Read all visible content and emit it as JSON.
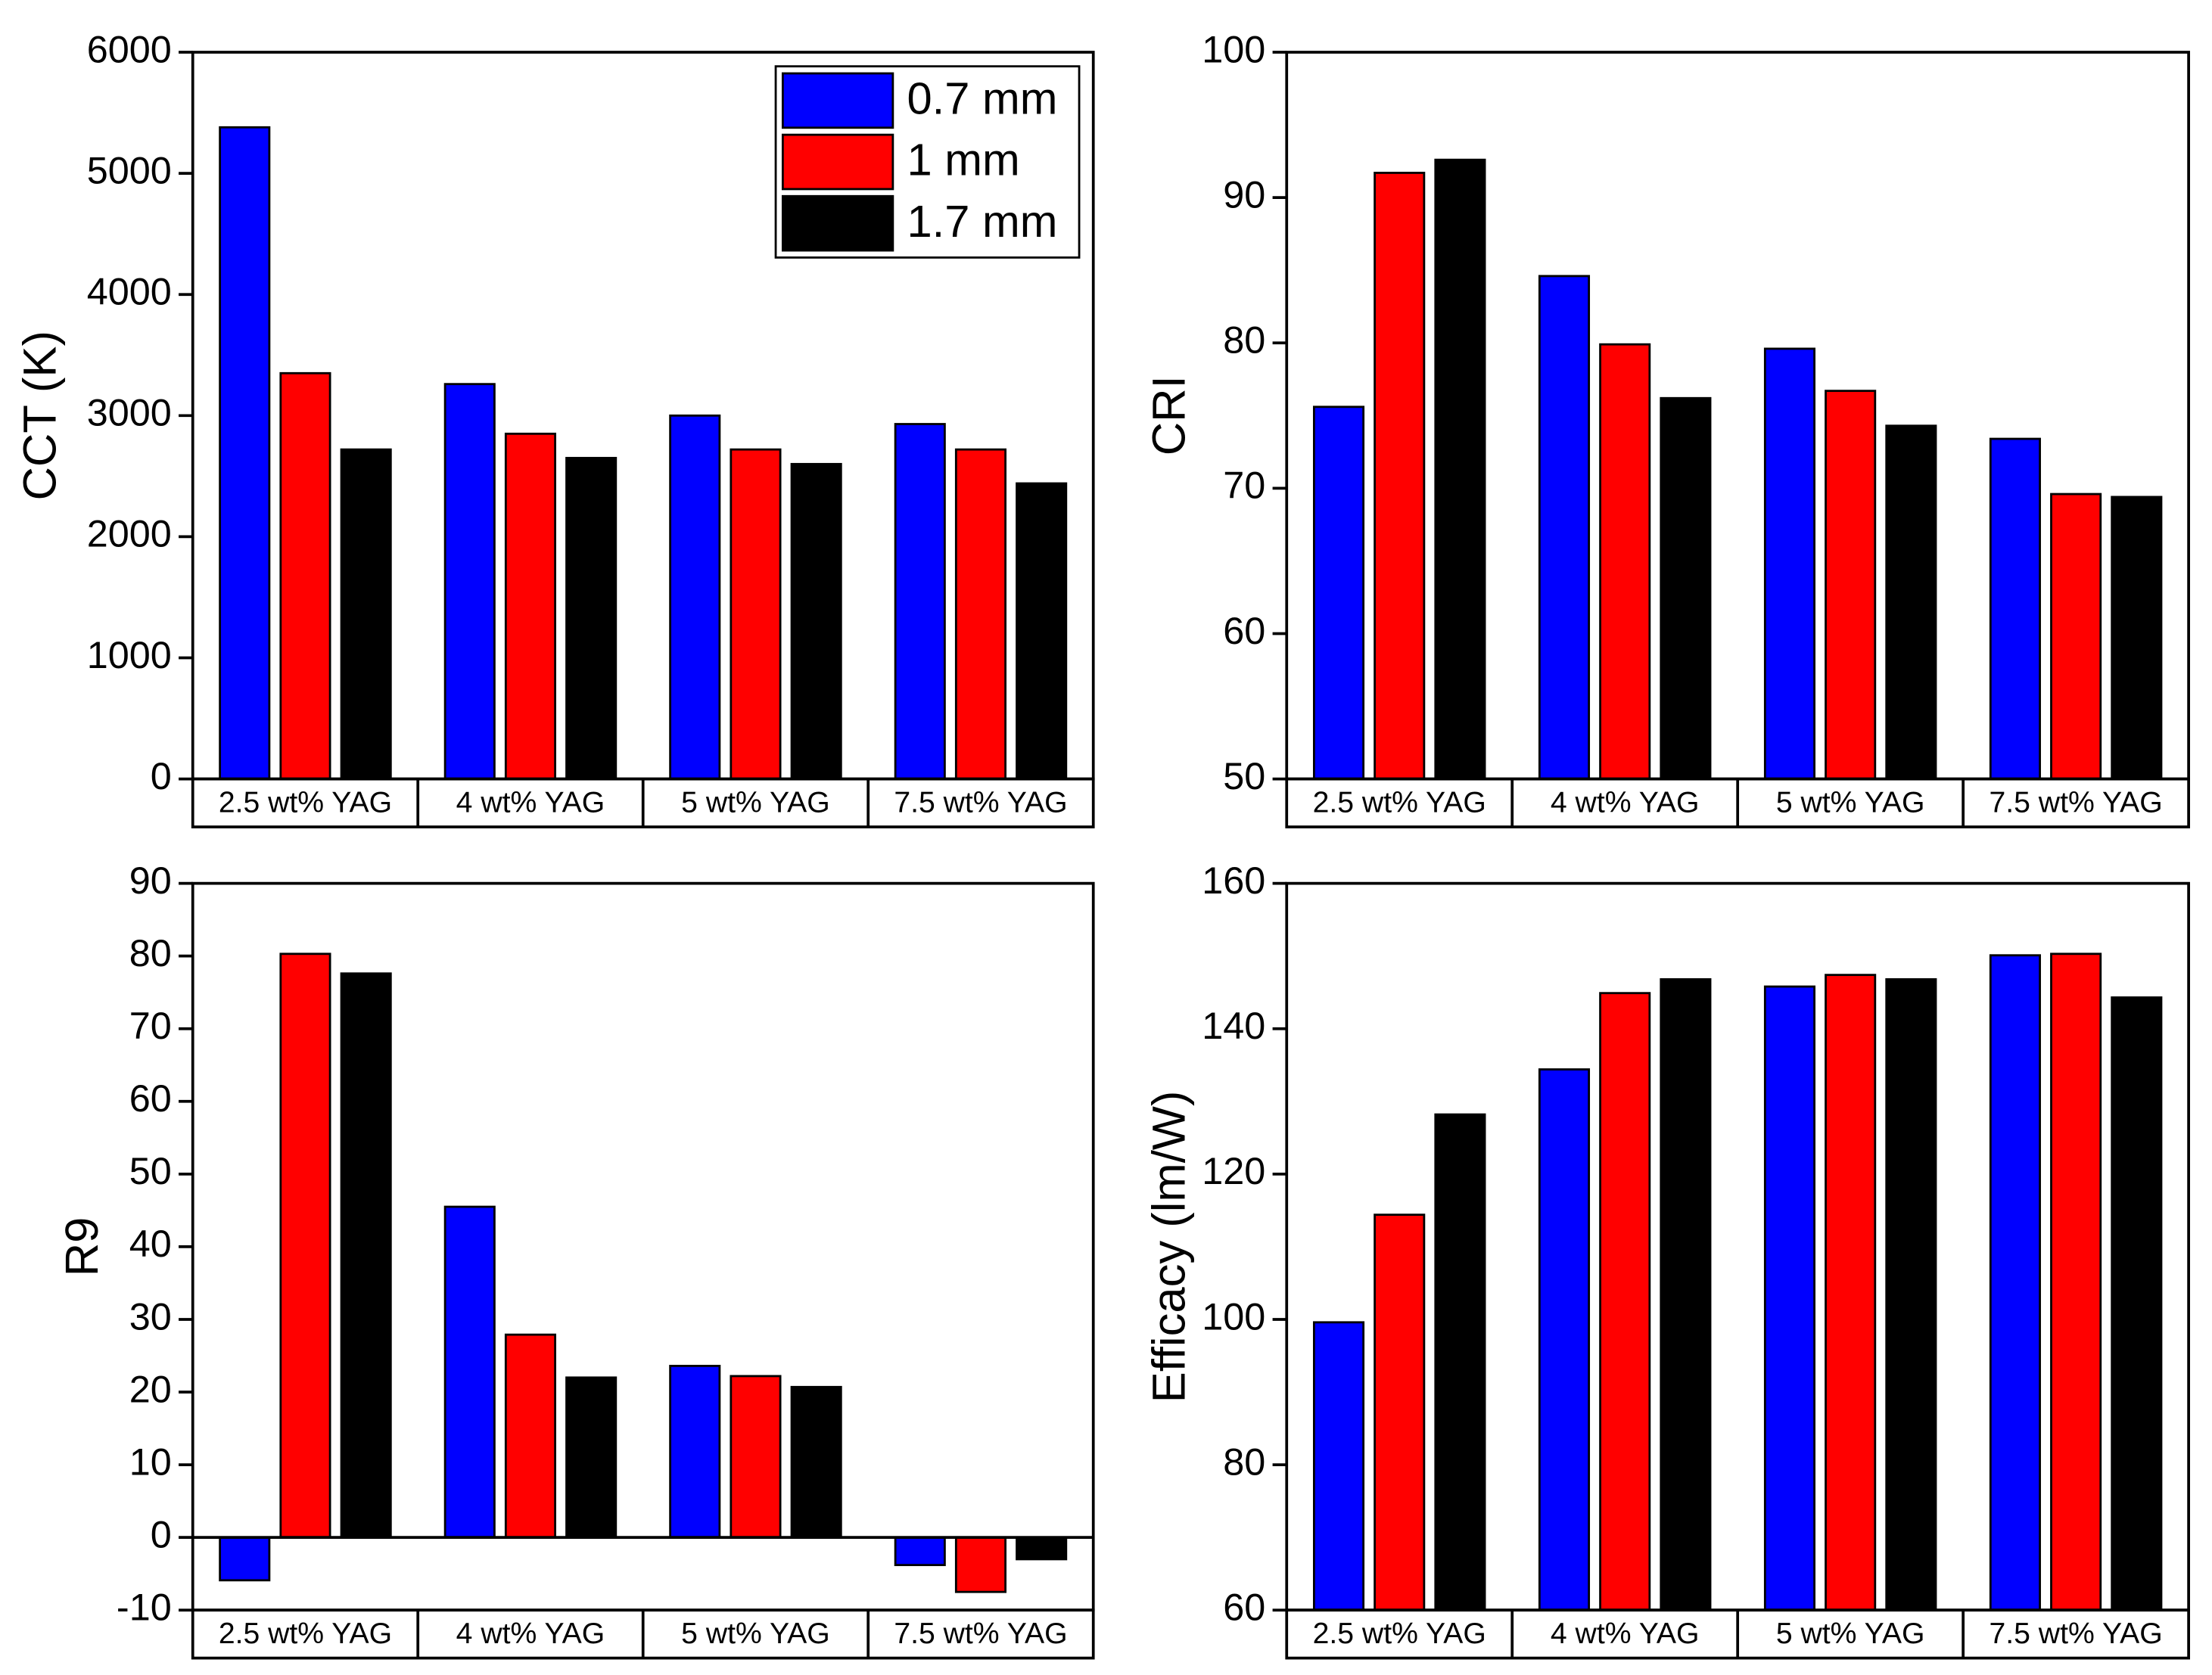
{
  "chart_data": [
    {
      "type": "bar",
      "y_label": "CCT (K)",
      "categories": [
        "2.5 wt% YAG",
        "4 wt% YAG",
        "5 wt% YAG",
        "7.5 wt% YAG"
      ],
      "series": [
        {
          "name": "0.7 mm",
          "color": "#0000ff",
          "values": [
            5380,
            3260,
            3000,
            2930
          ]
        },
        {
          "name": "1 mm",
          "color": "#ff0000",
          "values": [
            3350,
            2850,
            2720,
            2720
          ]
        },
        {
          "name": "1.7 mm",
          "color": "#000000",
          "values": [
            2720,
            2650,
            2600,
            2440
          ]
        }
      ],
      "ylim": [
        0,
        6000
      ],
      "yticks": [
        0,
        1000,
        2000,
        3000,
        4000,
        5000,
        6000
      ],
      "legend": "upper right"
    },
    {
      "type": "bar",
      "y_label": "CRI",
      "categories": [
        "2.5 wt% YAG",
        "4 wt% YAG",
        "5 wt% YAG",
        "7.5 wt% YAG"
      ],
      "series": [
        {
          "color": "#0000ff",
          "values": [
            75.6,
            84.6,
            79.6,
            73.4
          ]
        },
        {
          "color": "#ff0000",
          "values": [
            91.7,
            79.9,
            76.7,
            69.6
          ]
        },
        {
          "color": "#000000",
          "values": [
            92.6,
            76.2,
            74.3,
            69.4
          ]
        }
      ],
      "ylim": [
        50,
        100
      ],
      "yticks": [
        50,
        60,
        70,
        80,
        90,
        100
      ]
    },
    {
      "type": "bar",
      "y_label": "R9",
      "categories": [
        "2.5 wt% YAG",
        "4 wt% YAG",
        "5 wt% YAG",
        "7.5 wt% YAG"
      ],
      "series": [
        {
          "color": "#0000ff",
          "values": [
            -5.9,
            45.5,
            23.6,
            -3.8
          ]
        },
        {
          "color": "#ff0000",
          "values": [
            80.3,
            27.9,
            22.2,
            -7.5
          ]
        },
        {
          "color": "#000000",
          "values": [
            77.6,
            22.0,
            20.7,
            -3.0
          ]
        }
      ],
      "ylim": [
        -10,
        90
      ],
      "yticks": [
        -10,
        0,
        10,
        20,
        30,
        40,
        50,
        60,
        70,
        80,
        90
      ]
    },
    {
      "type": "bar",
      "y_label": "Efficacy (lm/W)",
      "categories": [
        "2.5 wt% YAG",
        "4 wt% YAG",
        "5 wt% YAG",
        "7.5 wt% YAG"
      ],
      "series": [
        {
          "color": "#0000ff",
          "values": [
            99.6,
            134.4,
            145.8,
            150.1
          ]
        },
        {
          "color": "#ff0000",
          "values": [
            114.4,
            144.9,
            147.4,
            150.3
          ]
        },
        {
          "color": "#000000",
          "values": [
            128.2,
            146.8,
            146.8,
            144.3
          ]
        }
      ],
      "ylim": [
        60,
        160
      ],
      "yticks": [
        60,
        80,
        100,
        120,
        140,
        160
      ]
    }
  ]
}
